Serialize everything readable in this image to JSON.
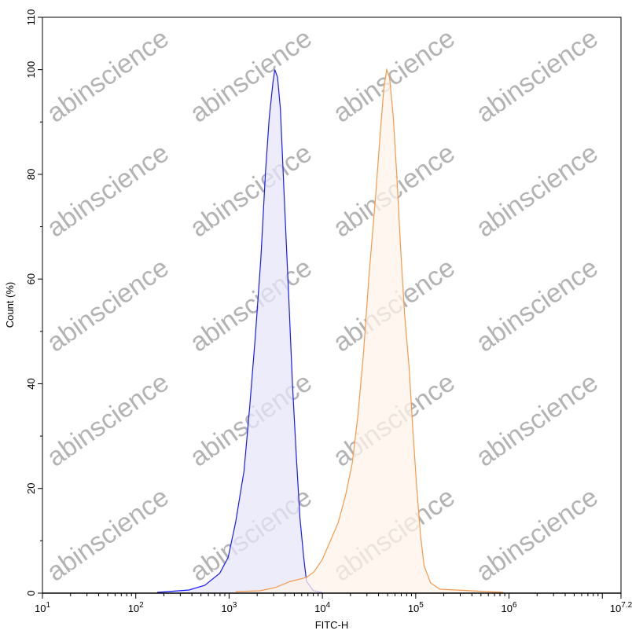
{
  "chart_data": {
    "type": "area",
    "title": "",
    "xlabel": "FITC-H",
    "ylabel": "Count (%)",
    "xscale": "log",
    "xlim_log10": [
      1,
      7.2
    ],
    "ylim": [
      0,
      110
    ],
    "grid": false,
    "x_tick_labels": [
      {
        "base": "10",
        "exp": "1",
        "log10": 1
      },
      {
        "base": "10",
        "exp": "2",
        "log10": 2
      },
      {
        "base": "10",
        "exp": "3",
        "log10": 3
      },
      {
        "base": "10",
        "exp": "4",
        "log10": 4
      },
      {
        "base": "10",
        "exp": "5",
        "log10": 5
      },
      {
        "base": "10",
        "exp": "6",
        "log10": 6
      },
      {
        "base": "10",
        "exp": "7.2",
        "log10": 7.2
      }
    ],
    "y_ticks": [
      0,
      20,
      40,
      60,
      80,
      100,
      110
    ],
    "series": [
      {
        "color": "#1a1aff",
        "fill": "#e6e6fa",
        "points_log10x_y": [
          [
            2.23,
            0.15
          ],
          [
            2.57,
            0.6
          ],
          [
            2.74,
            1.5
          ],
          [
            2.9,
            3.8
          ],
          [
            2.99,
            6.8
          ],
          [
            3.07,
            13.5
          ],
          [
            3.16,
            23.3
          ],
          [
            3.22,
            35.3
          ],
          [
            3.28,
            48.8
          ],
          [
            3.34,
            63.8
          ],
          [
            3.39,
            80.3
          ],
          [
            3.43,
            90.8
          ],
          [
            3.47,
            97.5
          ],
          [
            3.49,
            100
          ],
          [
            3.52,
            98.5
          ],
          [
            3.55,
            92.5
          ],
          [
            3.59,
            76
          ],
          [
            3.64,
            56.3
          ],
          [
            3.68,
            39.8
          ],
          [
            3.72,
            26.3
          ],
          [
            3.76,
            14.3
          ],
          [
            3.8,
            6.8
          ],
          [
            3.83,
            2.3
          ],
          [
            3.9,
            0.5
          ],
          [
            4.0,
            0.15
          ]
        ]
      },
      {
        "color": "#f59a4d",
        "fill": "#fdf3ea",
        "points_log10x_y": [
          [
            3.07,
            0.3
          ],
          [
            3.33,
            0.45
          ],
          [
            3.49,
            1.05
          ],
          [
            3.66,
            2.25
          ],
          [
            3.83,
            3.0
          ],
          [
            3.91,
            4.05
          ],
          [
            4.0,
            6.45
          ],
          [
            4.08,
            9.75
          ],
          [
            4.17,
            13.5
          ],
          [
            4.25,
            18.8
          ],
          [
            4.32,
            24.8
          ],
          [
            4.38,
            33.8
          ],
          [
            4.44,
            45.8
          ],
          [
            4.5,
            60.8
          ],
          [
            4.57,
            75.8
          ],
          [
            4.62,
            87.8
          ],
          [
            4.66,
            96.8
          ],
          [
            4.69,
            100
          ],
          [
            4.72,
            98.5
          ],
          [
            4.76,
            91
          ],
          [
            4.8,
            79
          ],
          [
            4.84,
            65.5
          ],
          [
            4.88,
            53.5
          ],
          [
            4.93,
            43
          ],
          [
            4.97,
            31
          ],
          [
            5.01,
            20.5
          ],
          [
            5.05,
            11.3
          ],
          [
            5.09,
            5.25
          ],
          [
            5.16,
            1.95
          ],
          [
            5.26,
            0.75
          ],
          [
            5.6,
            0.45
          ],
          [
            5.94,
            0.15
          ]
        ]
      }
    ]
  },
  "watermark": {
    "text": "abinscience",
    "color": "#9a9a9a"
  }
}
